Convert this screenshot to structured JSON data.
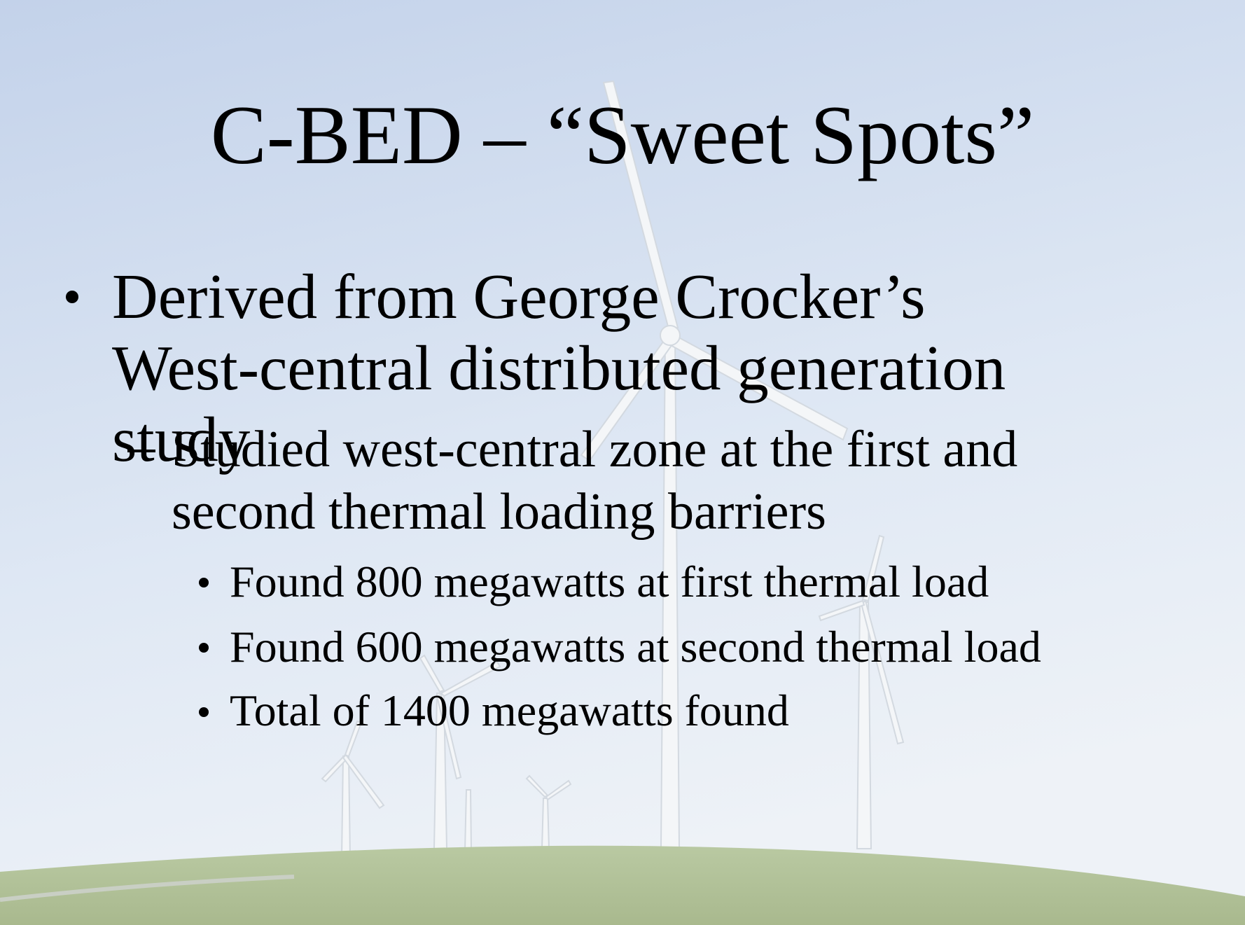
{
  "title": "C-BED – “Sweet Spots”",
  "bullets": [
    {
      "text": "Derived from George Crocker’s West-central distributed generation study",
      "children": [
        {
          "text": "Studied west-central zone at the first and second thermal loading barriers",
          "children": [
            {
              "text": "Found 800 megawatts at first thermal load"
            },
            {
              "text": "Found 600 megawatts at second thermal load"
            },
            {
              "text": "Total of 1400 megawatts found"
            }
          ]
        }
      ]
    }
  ]
}
